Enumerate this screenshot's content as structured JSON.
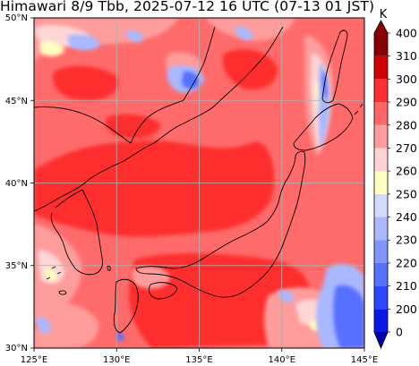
{
  "title": "Himawari 8/9 Tbb, 2025-07-12 16 UTC (07-13 01 JST)",
  "map": {
    "lon_range": [
      125,
      145
    ],
    "lat_range": [
      30,
      50
    ],
    "lon_ticks": [
      {
        "value": 125,
        "label": "125°E"
      },
      {
        "value": 130,
        "label": "130°E"
      },
      {
        "value": 135,
        "label": "135°E"
      },
      {
        "value": 140,
        "label": "140°E"
      },
      {
        "value": 145,
        "label": "145°E"
      }
    ],
    "lat_ticks": [
      {
        "value": 30,
        "label": "30°N"
      },
      {
        "value": 35,
        "label": "35°N"
      },
      {
        "value": 40,
        "label": "40°N"
      },
      {
        "value": 45,
        "label": "45°N"
      },
      {
        "value": 50,
        "label": "50°N"
      }
    ],
    "grid": true
  },
  "colorbar": {
    "unit": "K",
    "levels": [
      0,
      200,
      210,
      220,
      230,
      240,
      250,
      260,
      270,
      280,
      290,
      300,
      310,
      400
    ],
    "colors": [
      "#0000a8",
      "#0a18e8",
      "#2c48ff",
      "#5670ff",
      "#7f96ff",
      "#a9b8ff",
      "#d2dbff",
      "#ffffbf",
      "#ffd3d3",
      "#ff9c9c",
      "#ff6666",
      "#ff2f2f",
      "#d30000",
      "#8a0000"
    ],
    "extend": "min"
  }
}
